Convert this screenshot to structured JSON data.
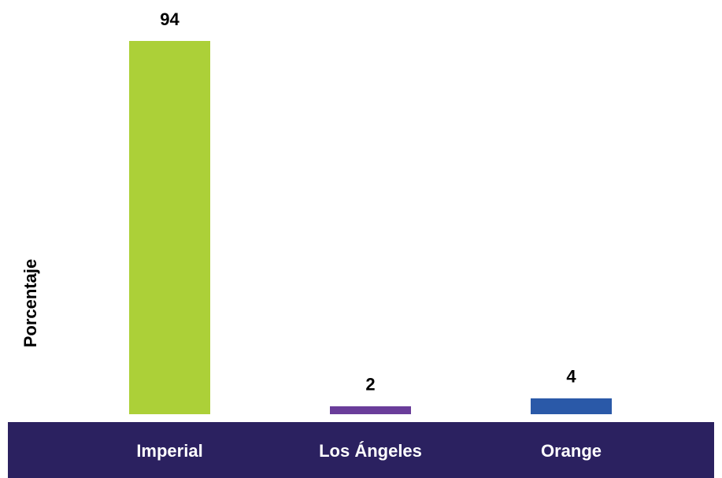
{
  "chart_data": {
    "type": "bar",
    "y_label": "Porcentaje",
    "categories": [
      "Imperial",
      "Los Ángeles",
      "Orange"
    ],
    "values": [
      94,
      2,
      4
    ],
    "colors": [
      "#acd038",
      "#6a3d9a",
      "#2a59a8"
    ]
  }
}
